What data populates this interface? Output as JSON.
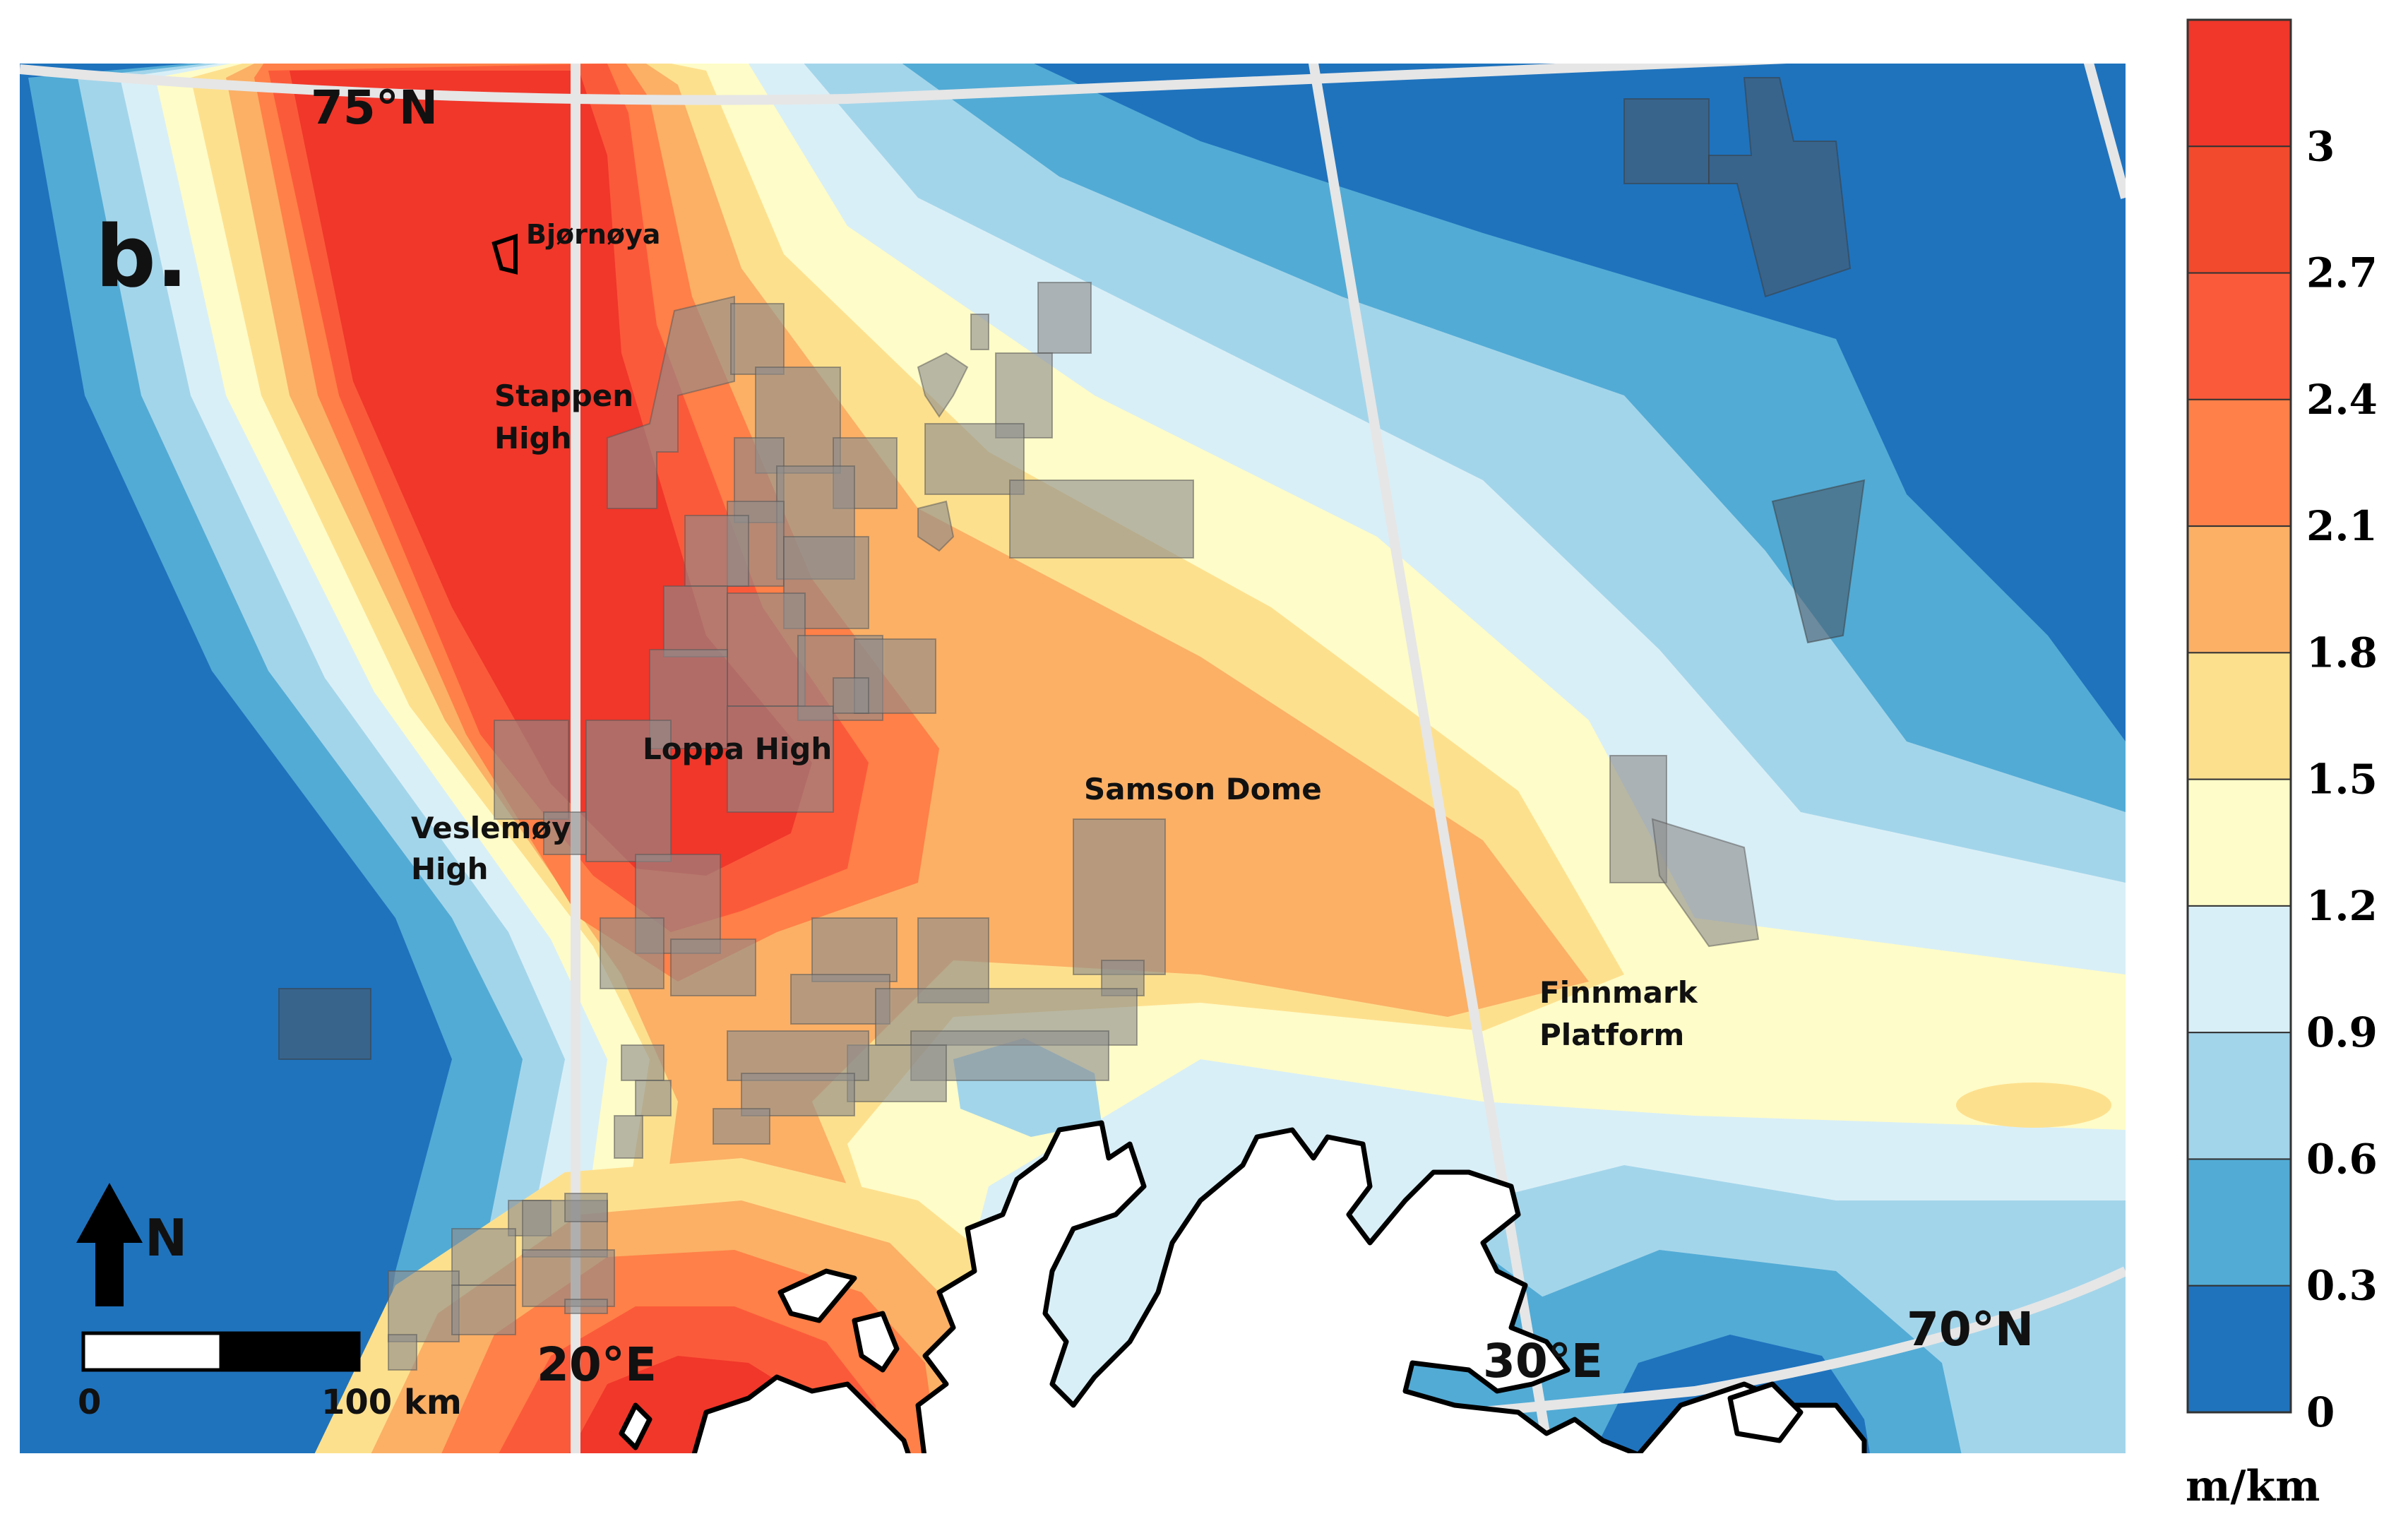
{
  "panel_label": "b.",
  "places": {
    "bjornoya": "Bjørnøya",
    "stappen_1": "Stappen",
    "stappen_2": "High",
    "loppa": "Loppa High",
    "veslemoy_1": "Veslemøy",
    "veslemoy_2": "High",
    "samson": "Samson Dome",
    "finnmark_1": "Finnmark",
    "finnmark_2": "Platform"
  },
  "graticule": {
    "lat_75": "75°N",
    "lat_70": "70°N",
    "lon_20": "20°E",
    "lon_30": "30°E"
  },
  "north_arrow": "N",
  "scale_bar": {
    "start": "0",
    "end": "100 km"
  },
  "legend": {
    "unit": "m/km",
    "ticks": [
      "3",
      "2.7",
      "2.4",
      "2.1",
      "1.8",
      "1.5",
      "1.2",
      "0.9",
      "0.6",
      "0.3",
      "0"
    ],
    "colors": [
      "#f0372a",
      "#f24a2c",
      "#fb5a3a",
      "#ff8048",
      "#fbb066",
      "#fde08e",
      "#fefcc8",
      "#d9eff7",
      "#a3d5ea",
      "#52abd5",
      "#1f73bd"
    ]
  }
}
